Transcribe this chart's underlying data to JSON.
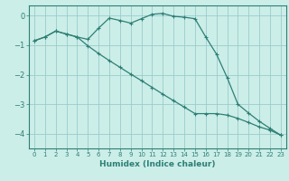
{
  "title": "",
  "xlabel": "Humidex (Indice chaleur)",
  "background_color": "#cceee8",
  "grid_color": "#99cccc",
  "line_color": "#2d7f75",
  "spine_color": "#2d7f75",
  "x_ticks": [
    0,
    1,
    2,
    3,
    4,
    5,
    6,
    7,
    8,
    9,
    10,
    11,
    12,
    13,
    14,
    15,
    16,
    17,
    18,
    19,
    20,
    21,
    22,
    23
  ],
  "y_ticks": [
    0,
    -1,
    -2,
    -3,
    -4
  ],
  "xlim": [
    -0.5,
    23.5
  ],
  "ylim": [
    -4.5,
    0.35
  ],
  "curve1_x": [
    0,
    1,
    2,
    3,
    4,
    5,
    6,
    7,
    8,
    9,
    10,
    11,
    12,
    13,
    14,
    15,
    16,
    17,
    18,
    19,
    20,
    21,
    22,
    23
  ],
  "curve1_y": [
    -0.85,
    -0.72,
    -0.52,
    -0.62,
    -0.72,
    -0.8,
    -0.42,
    -0.08,
    -0.16,
    -0.25,
    -0.1,
    0.05,
    0.08,
    -0.02,
    -0.05,
    -0.1,
    -0.72,
    -1.3,
    -2.1,
    -3.0,
    -3.3,
    -3.58,
    -3.82,
    -4.05
  ],
  "curve2_x": [
    0,
    1,
    2,
    3,
    4,
    5,
    6,
    7,
    8,
    9,
    10,
    11,
    12,
    13,
    14,
    15,
    16,
    17,
    18,
    19,
    20,
    21,
    22,
    23
  ],
  "curve2_y": [
    -0.85,
    -0.72,
    -0.52,
    -0.62,
    -0.72,
    -1.02,
    -1.28,
    -1.52,
    -1.75,
    -1.98,
    -2.2,
    -2.43,
    -2.66,
    -2.88,
    -3.1,
    -3.32,
    -3.32,
    -3.32,
    -3.37,
    -3.48,
    -3.62,
    -3.77,
    -3.88,
    -4.05
  ]
}
